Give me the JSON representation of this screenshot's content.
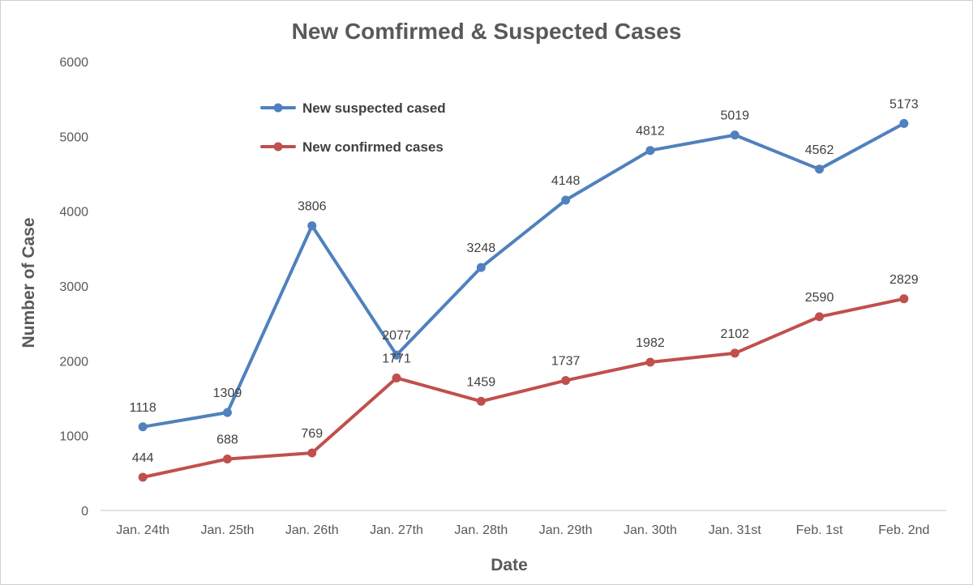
{
  "chart_data": {
    "type": "line",
    "title": "New Comfirmed & Suspected Cases",
    "xlabel": "Date",
    "ylabel": "Number of Case",
    "categories": [
      "Jan. 24th",
      "Jan. 25th",
      "Jan. 26th",
      "Jan. 27th",
      "Jan. 28th",
      "Jan. 29th",
      "Jan. 30th",
      "Jan. 31st",
      "Feb. 1st",
      "Feb. 2nd"
    ],
    "ylim": [
      0,
      6000
    ],
    "yticks": [
      0,
      1000,
      2000,
      3000,
      4000,
      5000,
      6000
    ],
    "grid": false,
    "legend_position": "top-left",
    "series": [
      {
        "name": "New suspected cased",
        "color": "#4f81bd",
        "values": [
          1118,
          1309,
          3806,
          2077,
          3248,
          4148,
          4812,
          5019,
          4562,
          5173
        ]
      },
      {
        "name": "New confirmed cases",
        "color": "#c0504d",
        "values": [
          444,
          688,
          769,
          1771,
          1459,
          1737,
          1982,
          2102,
          2590,
          2829
        ]
      }
    ]
  }
}
